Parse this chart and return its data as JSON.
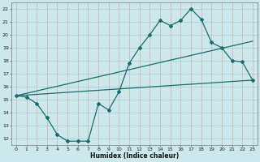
{
  "xlabel": "Humidex (Indice chaleur)",
  "bg_color": "#cce8ec",
  "grid_color": "#aacdd4",
  "line_color": "#1a6b6b",
  "line1_x": [
    0,
    1,
    2,
    3,
    4,
    5,
    6,
    7,
    8,
    9,
    10,
    11,
    12,
    13,
    14,
    15,
    16,
    17,
    18,
    19,
    20,
    21,
    22,
    23
  ],
  "line1_y": [
    15.3,
    15.2,
    14.7,
    13.6,
    12.3,
    11.8,
    11.8,
    11.8,
    14.7,
    14.2,
    15.6,
    17.8,
    19.0,
    20.0,
    21.1,
    20.7,
    21.1,
    22.0,
    21.2,
    19.4,
    19.0,
    18.0,
    17.9,
    16.5
  ],
  "line2_x": [
    0,
    23
  ],
  "line2_y": [
    15.3,
    19.5
  ],
  "line3_x": [
    0,
    23
  ],
  "line3_y": [
    15.3,
    16.5
  ],
  "ylim": [
    11.5,
    22.5
  ],
  "xlim": [
    -0.5,
    23.5
  ],
  "yticks": [
    12,
    13,
    14,
    15,
    16,
    17,
    18,
    19,
    20,
    21,
    22
  ],
  "xticks": [
    0,
    1,
    2,
    3,
    4,
    5,
    6,
    7,
    8,
    9,
    10,
    11,
    12,
    13,
    14,
    15,
    16,
    17,
    18,
    19,
    20,
    21,
    22,
    23
  ],
  "tick_fontsize": 4.5,
  "xlabel_fontsize": 5.5
}
